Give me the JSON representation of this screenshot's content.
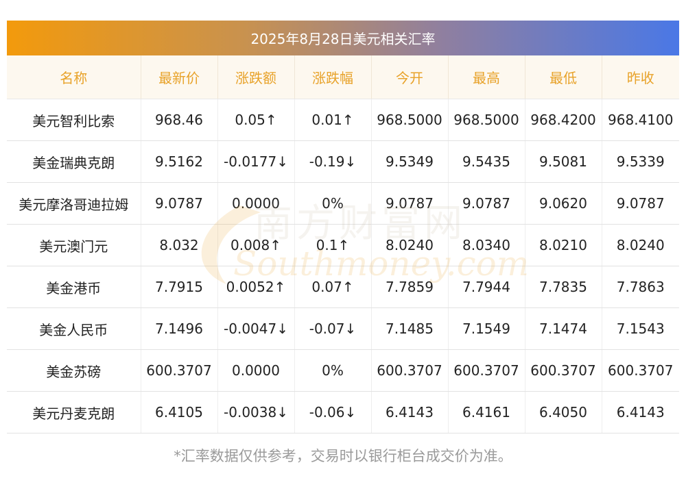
{
  "title": "2025年8月28日美元相关汇率",
  "headers": [
    "名称",
    "最新价",
    "涨跌额",
    "涨跌幅",
    "今开",
    "最高",
    "最低",
    "昨收"
  ],
  "rows": [
    {
      "name": "美元智利比索",
      "latest": "968.46",
      "change": "0.05↑",
      "pct": "0.01↑",
      "open": "968.5000",
      "high": "968.5000",
      "low": "968.4200",
      "prev": "968.4100",
      "direction": "up"
    },
    {
      "name": "美金瑞典克朗",
      "latest": "9.5162",
      "change": "-0.0177↓",
      "pct": "-0.19↓",
      "open": "9.5349",
      "high": "9.5435",
      "low": "9.5081",
      "prev": "9.5339",
      "direction": "down"
    },
    {
      "name": "美元摩洛哥迪拉姆",
      "latest": "9.0787",
      "change": "0.0000",
      "pct": "0%",
      "open": "9.0787",
      "high": "9.0787",
      "low": "9.0620",
      "prev": "9.0787",
      "direction": "flat"
    },
    {
      "name": "美元澳门元",
      "latest": "8.032",
      "change": "0.008↑",
      "pct": "0.1↑",
      "open": "8.0240",
      "high": "8.0340",
      "low": "8.0210",
      "prev": "8.0240",
      "direction": "up"
    },
    {
      "name": "美金港币",
      "latest": "7.7915",
      "change": "0.0052↑",
      "pct": "0.07↑",
      "open": "7.7859",
      "high": "7.7944",
      "low": "7.7835",
      "prev": "7.7863",
      "direction": "up"
    },
    {
      "name": "美金人民币",
      "latest": "7.1496",
      "change": "-0.0047↓",
      "pct": "-0.07↓",
      "open": "7.1485",
      "high": "7.1549",
      "low": "7.1474",
      "prev": "7.1543",
      "direction": "down"
    },
    {
      "name": "美金苏磅",
      "latest": "600.3707",
      "change": "0.0000",
      "pct": "0%",
      "open": "600.3707",
      "high": "600.3707",
      "low": "600.3707",
      "prev": "600.3707",
      "direction": "flat"
    },
    {
      "name": "美元丹麦克朗",
      "latest": "6.4105",
      "change": "-0.0038↓",
      "pct": "-0.06↓",
      "open": "6.4143",
      "high": "6.4161",
      "low": "6.4050",
      "prev": "6.4143",
      "direction": "down"
    }
  ],
  "watermark": {
    "cn": "南方财富网",
    "en": "Southmoney.com"
  },
  "footnote": "*汇率数据仅供参考，交易时以银行柜台成交价为准。",
  "colors": {
    "up": "#e81919",
    "down": "#2a8a1a",
    "header_text": "#e8a229",
    "header_bg": "#fdf8ef"
  }
}
